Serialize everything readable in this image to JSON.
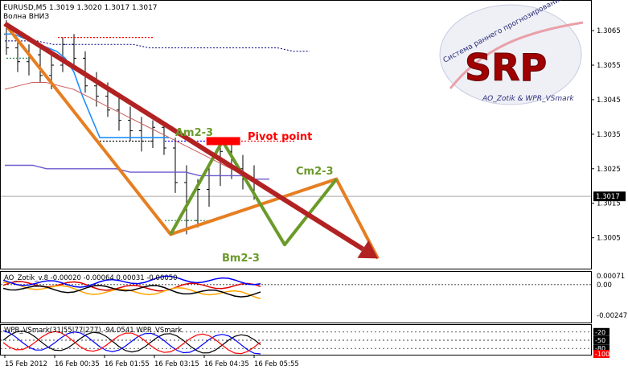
{
  "colors": {
    "background": "#ffffff",
    "frame": "#000000",
    "price_line": "#a9a9a9",
    "candle_wick": "#000000",
    "ma_blue_thick": "#1e90ff",
    "ma_dotted_navy": "#000080",
    "ma_purple": "#6a5acd",
    "ma_red": "#cd5c5c",
    "zigzag_orange": "#e67e22",
    "zigzag_green": "#6a9a2a",
    "trend_arrow": "#b22222",
    "pivot_red": "#ff0000",
    "ao_red": "#e00000",
    "ao_orange": "#ffa500",
    "ao_blue": "#0000ff",
    "ao_black": "#000000",
    "wpr_black": "#000000",
    "wpr_blue": "#0000ff",
    "wpr_red": "#ff0000"
  },
  "header": {
    "symbol_line": "EURUSD,M5  1.3019 1.3020 1.3017 1.3017",
    "wave_label": "Волна ВНИЗ"
  },
  "logo": {
    "brand": "SRP",
    "arc_text": "Система раннего прогнозирования",
    "author": "AO_Zotik & WPR_VSmark"
  },
  "annotations": {
    "am": "Am2-3",
    "bm": "Bm2-3",
    "cm": "Cm2-3",
    "pivot": "Pivot point"
  },
  "price_axis": {
    "ticks": [
      "1.3065",
      "1.3055",
      "1.3045",
      "1.3035",
      "1.3025",
      "1.3015",
      "1.3005"
    ],
    "current": "1.3017"
  },
  "time_axis": {
    "labels": [
      "15 Feb 2012",
      "16 Feb 00:35",
      "16 Feb 01:55",
      "16 Feb 03:15",
      "16 Feb 04:35",
      "16 Feb 05:55"
    ]
  },
  "ao_panel": {
    "label": "AO_Zotik_v.8 -0.00020 -0.00064 0.00031 -0.00050",
    "ticks": [
      "0.00071",
      "0.00",
      "-0.00247"
    ]
  },
  "wpr_panel": {
    "label": "WPR_VSmark(31|55|77|277) -94.0541  WPR_VSmark",
    "ticks": [
      "-20",
      "-50",
      "-80",
      "-100"
    ]
  },
  "chart_data": {
    "type": "line",
    "symbol": "EURUSD",
    "timeframe": "M5",
    "ohlc_header": {
      "open": 1.3019,
      "high": 1.302,
      "low": 1.3017,
      "close": 1.3017
    },
    "x_axis_labels": [
      "15 Feb 2012",
      "16 Feb 00:35",
      "16 Feb 01:55",
      "16 Feb 03:15",
      "16 Feb 04:35",
      "16 Feb 05:55"
    ],
    "y_ticks": [
      1.3005,
      1.3015,
      1.3025,
      1.3035,
      1.3045,
      1.3055,
      1.3065
    ],
    "ylim": [
      1.2997,
      1.3072
    ],
    "current_price": 1.3017,
    "bars": [
      {
        "t": 0,
        "o": 1.3064,
        "h": 1.3068,
        "l": 1.3058,
        "c": 1.306
      },
      {
        "t": 1,
        "o": 1.306,
        "h": 1.3062,
        "l": 1.3053,
        "c": 1.3056
      },
      {
        "t": 2,
        "o": 1.3056,
        "h": 1.3061,
        "l": 1.3052,
        "c": 1.3058
      },
      {
        "t": 3,
        "o": 1.3058,
        "h": 1.306,
        "l": 1.305,
        "c": 1.3052
      },
      {
        "t": 4,
        "o": 1.3052,
        "h": 1.3058,
        "l": 1.3048,
        "c": 1.3055
      },
      {
        "t": 5,
        "o": 1.3055,
        "h": 1.3063,
        "l": 1.3053,
        "c": 1.3061
      },
      {
        "t": 6,
        "o": 1.3061,
        "h": 1.3064,
        "l": 1.3054,
        "c": 1.3057
      },
      {
        "t": 7,
        "o": 1.3057,
        "h": 1.3059,
        "l": 1.3047,
        "c": 1.3049
      },
      {
        "t": 8,
        "o": 1.3049,
        "h": 1.3053,
        "l": 1.3043,
        "c": 1.3046
      },
      {
        "t": 9,
        "o": 1.3046,
        "h": 1.305,
        "l": 1.304,
        "c": 1.3042
      },
      {
        "t": 10,
        "o": 1.3042,
        "h": 1.3047,
        "l": 1.3036,
        "c": 1.3039
      },
      {
        "t": 11,
        "o": 1.3039,
        "h": 1.3043,
        "l": 1.3033,
        "c": 1.3036
      },
      {
        "t": 12,
        "o": 1.3036,
        "h": 1.304,
        "l": 1.303,
        "c": 1.3033
      },
      {
        "t": 13,
        "o": 1.3033,
        "h": 1.3039,
        "l": 1.3031,
        "c": 1.3037
      },
      {
        "t": 14,
        "o": 1.3037,
        "h": 1.3038,
        "l": 1.3029,
        "c": 1.3031
      },
      {
        "t": 15,
        "o": 1.3031,
        "h": 1.3034,
        "l": 1.3018,
        "c": 1.3021
      },
      {
        "t": 16,
        "o": 1.3021,
        "h": 1.3026,
        "l": 1.3006,
        "c": 1.301
      },
      {
        "t": 17,
        "o": 1.301,
        "h": 1.3022,
        "l": 1.3008,
        "c": 1.3019
      },
      {
        "t": 18,
        "o": 1.3019,
        "h": 1.3026,
        "l": 1.3014,
        "c": 1.3023
      },
      {
        "t": 19,
        "o": 1.3023,
        "h": 1.3033,
        "l": 1.302,
        "c": 1.303
      },
      {
        "t": 20,
        "o": 1.303,
        "h": 1.3032,
        "l": 1.3022,
        "c": 1.3025
      },
      {
        "t": 21,
        "o": 1.3025,
        "h": 1.3029,
        "l": 1.3019,
        "c": 1.3022
      },
      {
        "t": 22,
        "o": 1.3022,
        "h": 1.3026,
        "l": 1.3016,
        "c": 1.3017
      }
    ],
    "series": [
      {
        "values": [
          1.3064,
          1.3064,
          1.3063,
          1.3062,
          1.3061,
          1.306,
          1.3059,
          1.3057,
          1.3053,
          1.3046,
          1.304,
          1.3034,
          1.3034,
          1.3034,
          1.3034,
          1.3034,
          1.3034,
          1.3034,
          1.3034,
          1.3034
        ]
      },
      {
        "values": [
          1.3062,
          1.3062,
          1.3062,
          1.3061,
          1.3061,
          1.3061,
          1.3061,
          1.3061,
          1.3061,
          1.306,
          1.306,
          1.306,
          1.306,
          1.306,
          1.306,
          1.306,
          1.306,
          1.306,
          1.3059,
          1.3059
        ]
      },
      {
        "values": [
          1.3026,
          1.3026,
          1.3026,
          1.3025,
          1.3025,
          1.3025,
          1.3025,
          1.3025,
          1.3025,
          1.3024,
          1.3024,
          1.3024,
          1.3024,
          1.3024,
          1.3023,
          1.3023,
          1.3023,
          1.3023,
          1.3022,
          1.3022
        ]
      },
      {
        "values": [
          1.3048,
          1.3049,
          1.305,
          1.305,
          1.3049,
          1.3048,
          1.3046,
          1.3044,
          1.3042,
          1.304,
          1.3038,
          1.3036,
          1.3034,
          1.3032,
          1.303,
          1.3028,
          1.3026,
          1.3024,
          1.3022,
          1.302
        ]
      }
    ],
    "wave_points": {
      "zigzag_orange": [
        {
          "t": 0,
          "p": 1.3067
        },
        {
          "t": 16,
          "p": 1.3006
        },
        {
          "t": 32,
          "p": 1.3022
        },
        {
          "t": 36,
          "p": 1.2999
        }
      ],
      "zigzag_green": [
        {
          "t": 16,
          "p": 1.3006,
          "label": ""
        },
        {
          "t": 21,
          "p": 1.3033,
          "label": "Am2-3"
        },
        {
          "t": 27,
          "p": 1.3003,
          "label": "Bm2-3"
        },
        {
          "t": 32,
          "p": 1.3022,
          "label": "Cm2-3"
        }
      ],
      "trend_arrow": [
        {
          "t": 0,
          "p": 1.3067
        },
        {
          "t": 36,
          "p": 1.2999
        }
      ],
      "pivot_point": {
        "t": 21,
        "p": 1.3033,
        "label": "Pivot point"
      }
    },
    "ao": {
      "ticks": [
        0.00071,
        0.0,
        -0.00247
      ],
      "ylim": [
        -0.003,
        0.0009
      ],
      "values": [
        -0.0002,
        -0.00064,
        0.00031,
        -0.0005
      ]
    },
    "wpr": {
      "ticks": [
        -20,
        -50,
        -80,
        -100
      ],
      "ylim": [
        -100,
        0
      ],
      "periods": [
        31,
        55,
        77,
        277
      ],
      "value": -94.0541
    }
  }
}
